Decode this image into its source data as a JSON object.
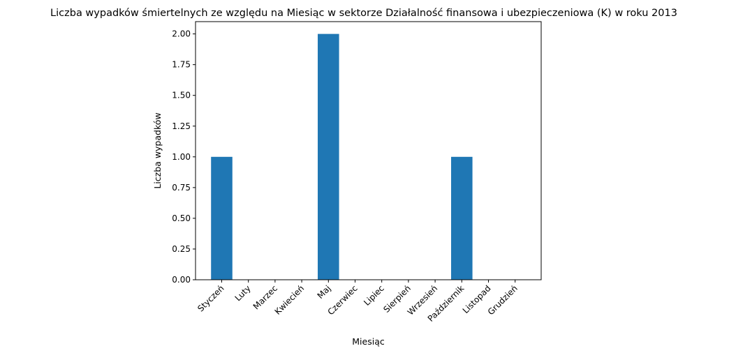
{
  "chart_data": {
    "type": "bar",
    "title": "Liczba wypadków śmiertelnych ze względu na Miesiąc w sektorze Działalność finansowa i ubezpieczeniowa (K) w roku 2013",
    "xlabel": "Miesiąc",
    "ylabel": "Liczba wypadków",
    "categories": [
      "Styczeń",
      "Luty",
      "Marzec",
      "Kwiecień",
      "Maj",
      "Czerwiec",
      "Lipiec",
      "Sierpień",
      "Wrzesień",
      "Październik",
      "Listopad",
      "Grudzień"
    ],
    "values": [
      1,
      0,
      0,
      0,
      2,
      0,
      0,
      0,
      0,
      1,
      0,
      0
    ],
    "ylim": [
      0,
      2.1
    ],
    "yticks": [
      0.0,
      0.25,
      0.5,
      0.75,
      1.0,
      1.25,
      1.5,
      1.75,
      2.0
    ],
    "ytick_labels": [
      "0.00",
      "0.25",
      "0.50",
      "0.75",
      "1.00",
      "1.25",
      "1.50",
      "1.75",
      "2.00"
    ],
    "bar_color": "#1f77b4",
    "grid": false,
    "legend": "none"
  }
}
